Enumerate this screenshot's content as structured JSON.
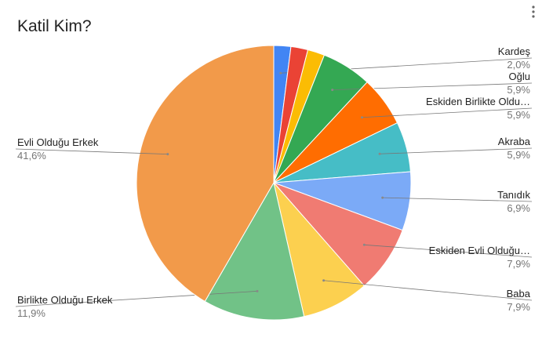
{
  "chart_data": {
    "type": "pie",
    "title": "Katil Kim?",
    "categories": [
      "Kardeş",
      null,
      null,
      "Oğlu",
      "Eskiden Birlikte Oldu…",
      "Akraba",
      "Tanıdık",
      "Eskiden Evli Olduğu…",
      "Baba",
      "Birlikte Olduğu Erkek",
      "Evli Olduğu Erkek"
    ],
    "values": [
      2.0,
      2.0,
      2.0,
      5.9,
      5.9,
      5.9,
      6.9,
      7.9,
      7.9,
      11.9,
      41.6
    ],
    "value_labels": [
      "2,0%",
      null,
      null,
      "5,9%",
      "5,9%",
      "5,9%",
      "6,9%",
      "7,9%",
      "7,9%",
      "11,9%",
      "41,6%"
    ],
    "colors": [
      "#4285f4",
      "#ea4335",
      "#fbbc04",
      "#34a853",
      "#ff6d01",
      "#46bdc6",
      "#7baaf7",
      "#f07b72",
      "#fcd04f",
      "#71c287",
      "#f29a4a"
    ]
  }
}
